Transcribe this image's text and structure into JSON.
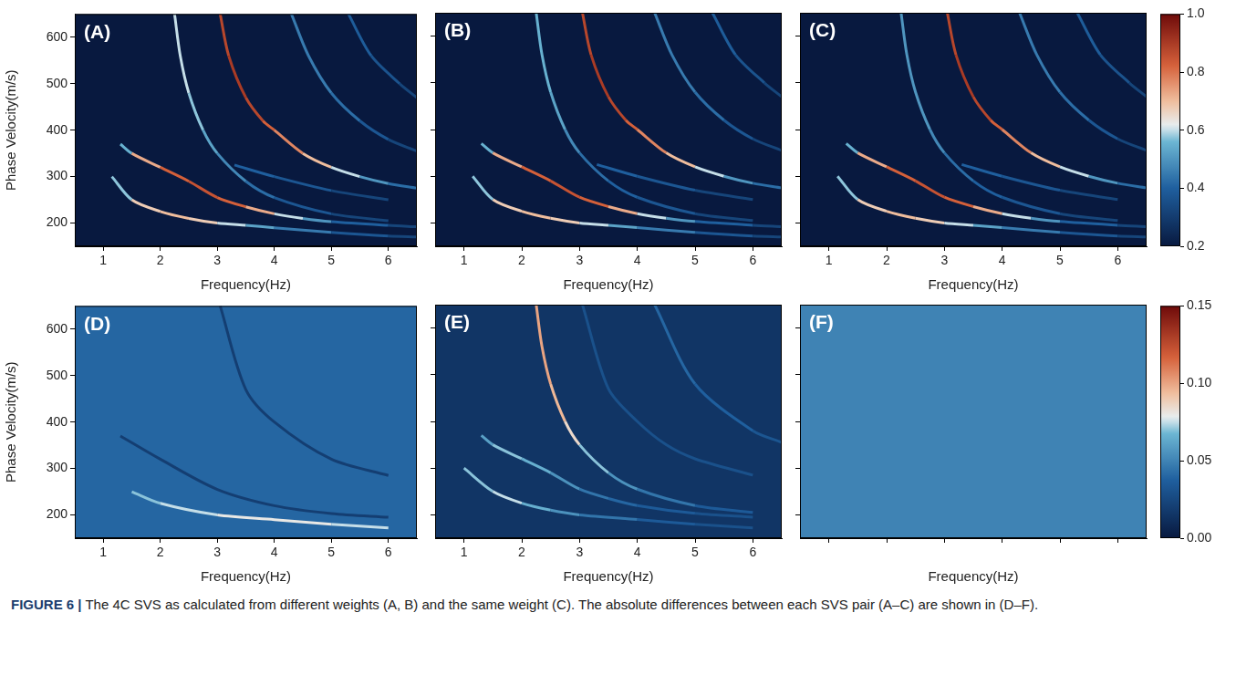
{
  "chart_data": [
    {
      "type": "heatmap",
      "title": "(A)",
      "x_label": "Frequency(Hz)",
      "y_label": "Phase Velocity(m/s)",
      "xlim": [
        0.5,
        6.5
      ],
      "ylim": [
        150,
        650
      ],
      "xticks": [
        1,
        2,
        3,
        4,
        5,
        6
      ],
      "yticks": [
        200,
        300,
        400,
        500,
        600
      ],
      "background": 0.2,
      "ridges": [
        {
          "x": [
            1.15,
            1.5,
            2,
            2.5,
            3,
            3.5,
            4,
            5,
            6,
            6.5
          ],
          "y": [
            300,
            250,
            225,
            210,
            200,
            195,
            190,
            180,
            172,
            170
          ],
          "values": [
            0.5,
            0.65,
            0.7,
            0.7,
            0.65,
            0.55,
            0.5,
            0.4,
            0.35,
            0.3
          ]
        },
        {
          "x": [
            1.3,
            1.5,
            2,
            2.5,
            3,
            3.5,
            4,
            4.5,
            5,
            6,
            6.5
          ],
          "y": [
            370,
            350,
            320,
            290,
            255,
            235,
            220,
            210,
            203,
            195,
            192
          ],
          "values": [
            0.45,
            0.65,
            0.8,
            0.85,
            0.85,
            0.8,
            0.65,
            0.55,
            0.45,
            0.35,
            0.3
          ]
        },
        {
          "x": [
            2.25,
            2.35,
            2.5,
            2.75,
            3,
            3.5,
            4,
            5,
            6
          ],
          "y": [
            650,
            560,
            480,
            400,
            350,
            290,
            255,
            220,
            205
          ],
          "values": [
            0.6,
            0.6,
            0.6,
            0.55,
            0.5,
            0.45,
            0.4,
            0.35,
            0.3
          ]
        },
        {
          "x": [
            3.05,
            3.2,
            3.5,
            3.8,
            4,
            4.5,
            5,
            5.5,
            6,
            6.5
          ],
          "y": [
            650,
            560,
            470,
            420,
            400,
            350,
            320,
            300,
            285,
            275
          ],
          "values": [
            0.85,
            0.9,
            0.9,
            0.85,
            0.8,
            0.75,
            0.65,
            0.55,
            0.45,
            0.4
          ]
        },
        {
          "x": [
            3.3,
            4,
            5,
            6
          ],
          "y": [
            325,
            300,
            270,
            250
          ],
          "values": [
            0.4,
            0.4,
            0.35,
            0.3
          ]
        },
        {
          "x": [
            4.3,
            4.6,
            5,
            5.5,
            6,
            6.5
          ],
          "y": [
            650,
            560,
            480,
            420,
            380,
            355
          ],
          "values": [
            0.45,
            0.45,
            0.45,
            0.4,
            0.35,
            0.3
          ]
        },
        {
          "x": [
            5.3,
            5.7,
            6.2,
            6.5
          ],
          "y": [
            650,
            560,
            500,
            470
          ],
          "values": [
            0.4,
            0.38,
            0.35,
            0.3
          ]
        }
      ]
    },
    {
      "type": "heatmap",
      "title": "(B)",
      "x_label": "Frequency(Hz)",
      "xlim": [
        0.5,
        6.5
      ],
      "ylim": [
        150,
        650
      ],
      "xticks": [
        1,
        2,
        3,
        4,
        5,
        6
      ],
      "yticks": [
        200,
        300,
        400,
        500,
        600
      ],
      "tick_labels": "x",
      "background": 0.2,
      "ridges": [
        {
          "x": [
            1.15,
            1.5,
            2,
            2.5,
            3,
            3.5,
            4,
            5,
            6,
            6.5
          ],
          "y": [
            300,
            250,
            225,
            210,
            200,
            195,
            190,
            180,
            172,
            170
          ],
          "values": [
            0.5,
            0.65,
            0.7,
            0.7,
            0.65,
            0.55,
            0.5,
            0.4,
            0.35,
            0.3
          ]
        },
        {
          "x": [
            1.3,
            1.5,
            2,
            2.5,
            3,
            3.5,
            4,
            4.5,
            5,
            6,
            6.5
          ],
          "y": [
            370,
            350,
            320,
            290,
            255,
            235,
            220,
            210,
            203,
            195,
            192
          ],
          "values": [
            0.45,
            0.65,
            0.8,
            0.85,
            0.85,
            0.8,
            0.65,
            0.55,
            0.45,
            0.35,
            0.3
          ]
        },
        {
          "x": [
            2.25,
            2.35,
            2.5,
            2.75,
            3,
            3.5,
            4,
            5,
            6
          ],
          "y": [
            650,
            560,
            480,
            400,
            350,
            290,
            255,
            220,
            205
          ],
          "values": [
            0.55,
            0.55,
            0.55,
            0.5,
            0.45,
            0.4,
            0.4,
            0.35,
            0.3
          ]
        },
        {
          "x": [
            3.05,
            3.2,
            3.5,
            3.8,
            4,
            4.5,
            5,
            5.5,
            6,
            6.5
          ],
          "y": [
            650,
            560,
            470,
            420,
            400,
            350,
            320,
            300,
            285,
            275
          ],
          "values": [
            0.85,
            0.9,
            0.9,
            0.85,
            0.8,
            0.75,
            0.65,
            0.55,
            0.45,
            0.4
          ]
        },
        {
          "x": [
            3.3,
            4,
            5,
            6
          ],
          "y": [
            325,
            300,
            270,
            250
          ],
          "values": [
            0.4,
            0.4,
            0.35,
            0.3
          ]
        },
        {
          "x": [
            4.3,
            4.6,
            5,
            5.5,
            6,
            6.5
          ],
          "y": [
            650,
            560,
            480,
            420,
            380,
            355
          ],
          "values": [
            0.45,
            0.45,
            0.45,
            0.4,
            0.35,
            0.3
          ]
        },
        {
          "x": [
            5.3,
            5.7,
            6.2,
            6.5
          ],
          "y": [
            650,
            560,
            500,
            470
          ],
          "values": [
            0.4,
            0.38,
            0.35,
            0.3
          ]
        }
      ]
    },
    {
      "type": "heatmap",
      "title": "(C)",
      "x_label": "Frequency(Hz)",
      "xlim": [
        0.5,
        6.5
      ],
      "ylim": [
        150,
        650
      ],
      "xticks": [
        1,
        2,
        3,
        4,
        5,
        6
      ],
      "yticks": [
        200,
        300,
        400,
        500,
        600
      ],
      "tick_labels": "x",
      "background": 0.2,
      "colorbar": {
        "range": [
          0.2,
          1
        ],
        "ticks": [
          0.2,
          0.4,
          0.6,
          0.8,
          {
            "value": 1,
            "label": "1.0"
          }
        ]
      },
      "ridges": [
        {
          "x": [
            1.15,
            1.5,
            2,
            2.5,
            3,
            3.5,
            4,
            5,
            6,
            6.5
          ],
          "y": [
            300,
            250,
            225,
            210,
            200,
            195,
            190,
            180,
            172,
            170
          ],
          "values": [
            0.5,
            0.65,
            0.7,
            0.7,
            0.65,
            0.55,
            0.5,
            0.4,
            0.35,
            0.3
          ]
        },
        {
          "x": [
            1.3,
            1.5,
            2,
            2.5,
            3,
            3.5,
            4,
            4.5,
            5,
            6,
            6.5
          ],
          "y": [
            370,
            350,
            320,
            290,
            255,
            235,
            220,
            210,
            203,
            195,
            192
          ],
          "values": [
            0.45,
            0.65,
            0.8,
            0.85,
            0.85,
            0.8,
            0.65,
            0.55,
            0.45,
            0.35,
            0.3
          ]
        },
        {
          "x": [
            2.25,
            2.35,
            2.5,
            2.75,
            3,
            3.5,
            4,
            5,
            6
          ],
          "y": [
            650,
            560,
            480,
            400,
            350,
            290,
            255,
            220,
            205
          ],
          "values": [
            0.5,
            0.5,
            0.5,
            0.5,
            0.45,
            0.4,
            0.4,
            0.35,
            0.3
          ]
        },
        {
          "x": [
            3.05,
            3.2,
            3.5,
            3.8,
            4,
            4.5,
            5,
            5.5,
            6,
            6.5
          ],
          "y": [
            650,
            560,
            470,
            420,
            400,
            350,
            320,
            300,
            285,
            275
          ],
          "values": [
            0.85,
            0.9,
            0.9,
            0.85,
            0.8,
            0.75,
            0.65,
            0.55,
            0.45,
            0.4
          ]
        },
        {
          "x": [
            3.3,
            4,
            5,
            6
          ],
          "y": [
            325,
            300,
            270,
            250
          ],
          "values": [
            0.4,
            0.4,
            0.35,
            0.3
          ]
        },
        {
          "x": [
            4.3,
            4.6,
            5,
            5.5,
            6,
            6.5
          ],
          "y": [
            650,
            560,
            480,
            420,
            380,
            355
          ],
          "values": [
            0.45,
            0.45,
            0.45,
            0.4,
            0.35,
            0.3
          ]
        },
        {
          "x": [
            5.3,
            5.7,
            6.2,
            6.5
          ],
          "y": [
            650,
            560,
            500,
            470
          ],
          "values": [
            0.4,
            0.38,
            0.35,
            0.3
          ]
        }
      ]
    },
    {
      "type": "heatmap",
      "title": "(D)",
      "x_label": "Frequency(Hz)",
      "y_label": "Phase Velocity(m/s)",
      "xlim": [
        0.5,
        6.5
      ],
      "ylim": [
        150,
        650
      ],
      "xticks": [
        1,
        2,
        3,
        4,
        5,
        6
      ],
      "yticks": [
        200,
        300,
        400,
        500,
        600
      ],
      "background": 0.04,
      "ridges": [
        {
          "x": [
            1.3,
            2,
            3,
            4,
            5,
            6
          ],
          "y": [
            370,
            320,
            255,
            220,
            203,
            195
          ],
          "values": [
            0.02,
            0.02,
            0.02,
            0.02,
            0.02,
            0.02
          ]
        },
        {
          "x": [
            3.05,
            3.5,
            4,
            5,
            6
          ],
          "y": [
            650,
            470,
            400,
            320,
            285
          ],
          "values": [
            0.02,
            0.02,
            0.02,
            0.02,
            0.02
          ]
        },
        {
          "x": [
            1.5,
            2,
            3,
            4,
            5,
            6
          ],
          "y": [
            250,
            225,
            200,
            190,
            180,
            172
          ],
          "values": [
            0.07,
            0.07,
            0.08,
            0.08,
            0.08,
            0.07
          ]
        }
      ]
    },
    {
      "type": "heatmap",
      "title": "(E)",
      "x_label": "Frequency(Hz)",
      "xlim": [
        0.5,
        6.5
      ],
      "ylim": [
        150,
        650
      ],
      "xticks": [
        1,
        2,
        3,
        4,
        5,
        6
      ],
      "yticks": [
        200,
        300,
        400,
        500,
        600
      ],
      "tick_labels": "x",
      "background": 0.015,
      "ridges": [
        {
          "x": [
            1,
            1.5,
            2,
            2.5,
            3,
            4,
            5,
            6
          ],
          "y": [
            300,
            250,
            225,
            210,
            200,
            190,
            180,
            172
          ],
          "values": [
            0.06,
            0.08,
            0.07,
            0.06,
            0.05,
            0.04,
            0.03,
            0.03
          ]
        },
        {
          "x": [
            1.3,
            1.5,
            2,
            2.5,
            3,
            3.5,
            4,
            5,
            6
          ],
          "y": [
            370,
            350,
            320,
            290,
            255,
            235,
            220,
            203,
            195
          ],
          "values": [
            0.05,
            0.07,
            0.07,
            0.06,
            0.05,
            0.04,
            0.04,
            0.03,
            0.03
          ]
        },
        {
          "x": [
            2.25,
            2.35,
            2.5,
            2.75,
            3,
            3.5,
            4,
            5,
            6
          ],
          "y": [
            650,
            560,
            480,
            400,
            350,
            290,
            255,
            220,
            205
          ],
          "values": [
            0.1,
            0.1,
            0.1,
            0.09,
            0.08,
            0.06,
            0.05,
            0.04,
            0.03
          ]
        },
        {
          "x": [
            3.05,
            3.5,
            4,
            4.5,
            5,
            6
          ],
          "y": [
            650,
            470,
            400,
            350,
            320,
            285
          ],
          "values": [
            0.03,
            0.03,
            0.03,
            0.03,
            0.03,
            0.03
          ]
        },
        {
          "x": [
            4.3,
            5,
            6,
            6.5
          ],
          "y": [
            650,
            480,
            380,
            355
          ],
          "values": [
            0.04,
            0.04,
            0.035,
            0.03
          ]
        }
      ]
    },
    {
      "type": "heatmap",
      "x_label": "Frequency(Hz)",
      "title": "(F)",
      "xlim": [
        0.5,
        6.5
      ],
      "ylim": [
        150,
        650
      ],
      "xticks": [
        1,
        2,
        3,
        4,
        5,
        6
      ],
      "yticks": [
        200,
        300,
        400,
        500,
        600
      ],
      "tick_labels": false,
      "background": 0.05,
      "colorbar": {
        "range": [
          0,
          0.15
        ],
        "ticks": [
          {
            "value": 0,
            "label": "0.00"
          },
          {
            "value": 0.05,
            "label": "0.05"
          },
          {
            "value": 0.1,
            "label": "0.10"
          },
          {
            "value": 0.15,
            "label": "0.15"
          }
        ]
      },
      "ridges": []
    }
  ],
  "caption": {
    "label": "FIGURE 6 |",
    "text": "The 4C SVS as calculated from different weights (A, B) and the same weight (C). The absolute differences between each SVS pair (A–C) are shown in (D–F)."
  }
}
